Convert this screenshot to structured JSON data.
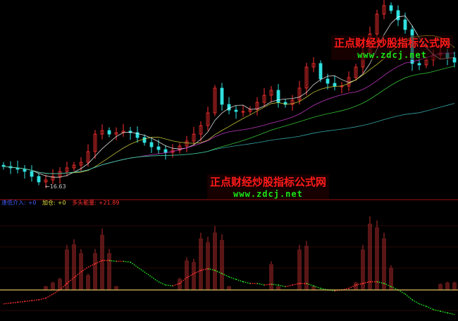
{
  "watermark": {
    "cn": "正点财经炒股指标公式网",
    "url": "www.zdcj.net"
  },
  "indicator_legend": {
    "item1_label": "逢低介入:",
    "item1_value": "+0",
    "item2_label": "加仓:",
    "item2_value": "+0",
    "item3_label": "多头能量:",
    "item3_value": "+21.89",
    "item1_color": "#4060ff",
    "item2_color": "#e0e040",
    "item3_color": "#ff3030"
  },
  "chart_data": [
    {
      "type": "candlestick",
      "low_label": "16.63",
      "colors": {
        "up": "#ff3030",
        "down": "#30e0e0",
        "ma": [
          "#ffffff",
          "#e0e040",
          "#e040e0",
          "#40e040",
          "#40c0c0"
        ]
      },
      "moving_average_periods": [
        5,
        10,
        20,
        30,
        60
      ],
      "grid": false,
      "close": [
        18.09,
        17.98,
        17.87,
        17.7,
        17.31,
        16.87,
        17.03,
        17.31,
        17.7,
        17.98,
        18.2,
        18.42,
        19.26,
        20.64,
        20.92,
        20.64,
        20.76,
        20.87,
        20.76,
        20.37,
        19.98,
        19.64,
        19.42,
        19.2,
        19.37,
        19.7,
        20.09,
        20.64,
        21.31,
        22.31,
        24.26,
        22.98,
        22.53,
        22.42,
        22.42,
        22.59,
        23.14,
        23.7,
        24.09,
        23.14,
        22.98,
        23.31,
        24.26,
        25.92,
        26.2,
        24.98,
        24.64,
        24.42,
        24.42,
        25.09,
        25.92,
        27.03,
        28.53,
        30.09,
        30.76,
        30.37,
        29.64,
        28.87,
        26.2,
        26.09,
        26.48,
        26.87,
        27.03,
        26.64,
        26.31
      ]
    },
    {
      "type": "bar+line",
      "colors": {
        "bar": "#c83232",
        "line_up": "#ff3030",
        "line_down": "#20e020",
        "zero": "#e0c060"
      },
      "bars": [
        0,
        0,
        0,
        0,
        0,
        0,
        5,
        10,
        15,
        55,
        62,
        50,
        20,
        50,
        75,
        50,
        5,
        0,
        0,
        0,
        0,
        0,
        0,
        0,
        0,
        15,
        40,
        38,
        70,
        65,
        78,
        68,
        5,
        0,
        0,
        0,
        0,
        0,
        35,
        5,
        0,
        0,
        55,
        60,
        5,
        0,
        0,
        0,
        0,
        0,
        10,
        55,
        90,
        85,
        70,
        30,
        0,
        0,
        0,
        0,
        0,
        0,
        8,
        10,
        10
      ],
      "energy_line": [
        -17,
        -16,
        -15,
        -14,
        -13,
        -12,
        -10,
        -5,
        0,
        8,
        15,
        22,
        28,
        32,
        36,
        36,
        35,
        35,
        34,
        28,
        22,
        16,
        10,
        6,
        5,
        8,
        15,
        20,
        24,
        26,
        24,
        20,
        16,
        13,
        10,
        8,
        8,
        6,
        7,
        6,
        4,
        6,
        8,
        8,
        5,
        2,
        0,
        -1,
        0,
        2,
        6,
        8,
        10,
        10,
        8,
        4,
        0,
        -5,
        -12,
        -17,
        -20,
        -24,
        -26,
        -28,
        -30
      ]
    }
  ]
}
